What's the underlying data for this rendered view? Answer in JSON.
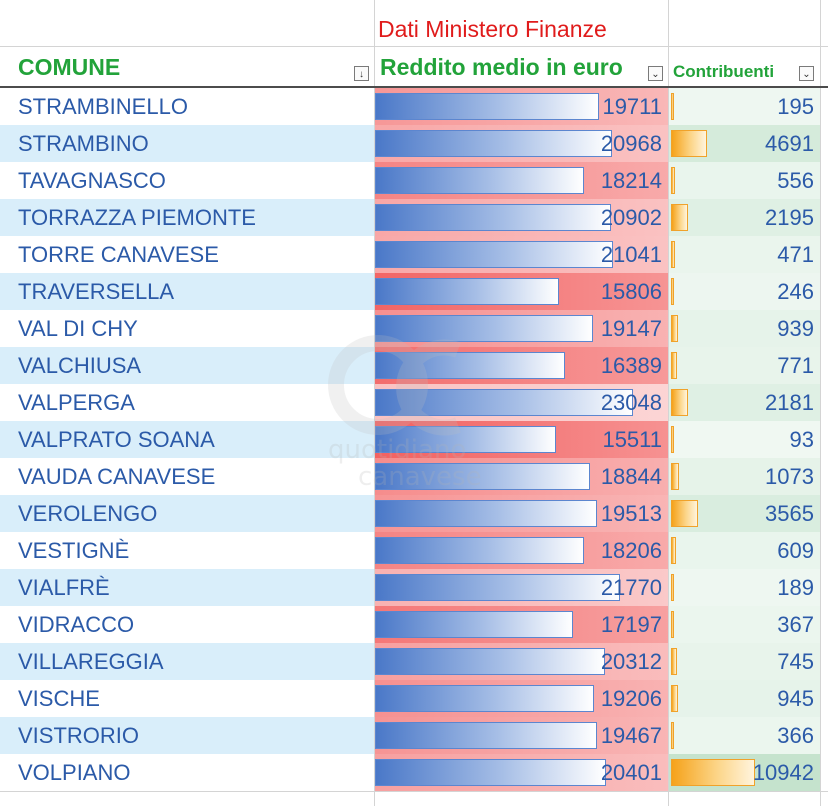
{
  "header": {
    "title": "Dati Ministero Finanze",
    "col_comune": "COMUNE",
    "col_reddito": "Reddito medio in euro",
    "col_contribuenti": "Contribuenti",
    "filter_sorted_glyph": "↓",
    "filter_glyph": "⌄"
  },
  "watermark": {
    "line1": "quotidiano",
    "line2": "canavese"
  },
  "colors": {
    "title": "#e01b1b",
    "header": "#22a33a",
    "text": "#2b5aa8",
    "band": "#d9eefa"
  },
  "rows": [
    {
      "comune": "STRAMBINELLO",
      "reddito": "19711",
      "contribuenti": "195"
    },
    {
      "comune": "STRAMBINO",
      "reddito": "20968",
      "contribuenti": "4691"
    },
    {
      "comune": "TAVAGNASCO",
      "reddito": "18214",
      "contribuenti": "556"
    },
    {
      "comune": "TORRAZZA PIEMONTE",
      "reddito": "20902",
      "contribuenti": "2195"
    },
    {
      "comune": "TORRE CANAVESE",
      "reddito": "21041",
      "contribuenti": "471"
    },
    {
      "comune": "TRAVERSELLA",
      "reddito": "15806",
      "contribuenti": "246"
    },
    {
      "comune": "VAL DI CHY",
      "reddito": "19147",
      "contribuenti": "939"
    },
    {
      "comune": "VALCHIUSA",
      "reddito": "16389",
      "contribuenti": "771"
    },
    {
      "comune": "VALPERGA",
      "reddito": "23048",
      "contribuenti": "2181"
    },
    {
      "comune": "VALPRATO SOANA",
      "reddito": "15511",
      "contribuenti": "93"
    },
    {
      "comune": "VAUDA CANAVESE",
      "reddito": "18844",
      "contribuenti": "1073"
    },
    {
      "comune": "VEROLENGO",
      "reddito": "19513",
      "contribuenti": "3565"
    },
    {
      "comune": "VESTIGNÈ",
      "reddito": "18206",
      "contribuenti": "609"
    },
    {
      "comune": "VIALFRÈ",
      "reddito": "21770",
      "contribuenti": "189"
    },
    {
      "comune": "VIDRACCO",
      "reddito": "17197",
      "contribuenti": "367"
    },
    {
      "comune": "VILLAREGGIA",
      "reddito": "20312",
      "contribuenti": "745"
    },
    {
      "comune": "VISCHE",
      "reddito": "19206",
      "contribuenti": "945"
    },
    {
      "comune": "VISTRORIO",
      "reddito": "19467",
      "contribuenti": "366"
    },
    {
      "comune": "VOLPIANO",
      "reddito": "20401",
      "contribuenti": "10942"
    }
  ]
}
